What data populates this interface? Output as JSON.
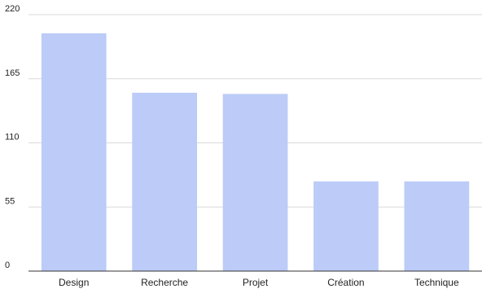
{
  "chart_data": {
    "type": "bar",
    "categories": [
      "Design",
      "Recherche",
      "Projet",
      "Création",
      "Technique"
    ],
    "values": [
      204,
      153,
      152,
      77,
      77
    ],
    "ylim": [
      0,
      220
    ],
    "yticks": [
      0,
      55,
      110,
      165,
      220
    ],
    "grid": true,
    "legend": "none",
    "bar_color": "#bccbf7",
    "grid_color": "#d9d9d9",
    "axis_color": "#333333"
  }
}
